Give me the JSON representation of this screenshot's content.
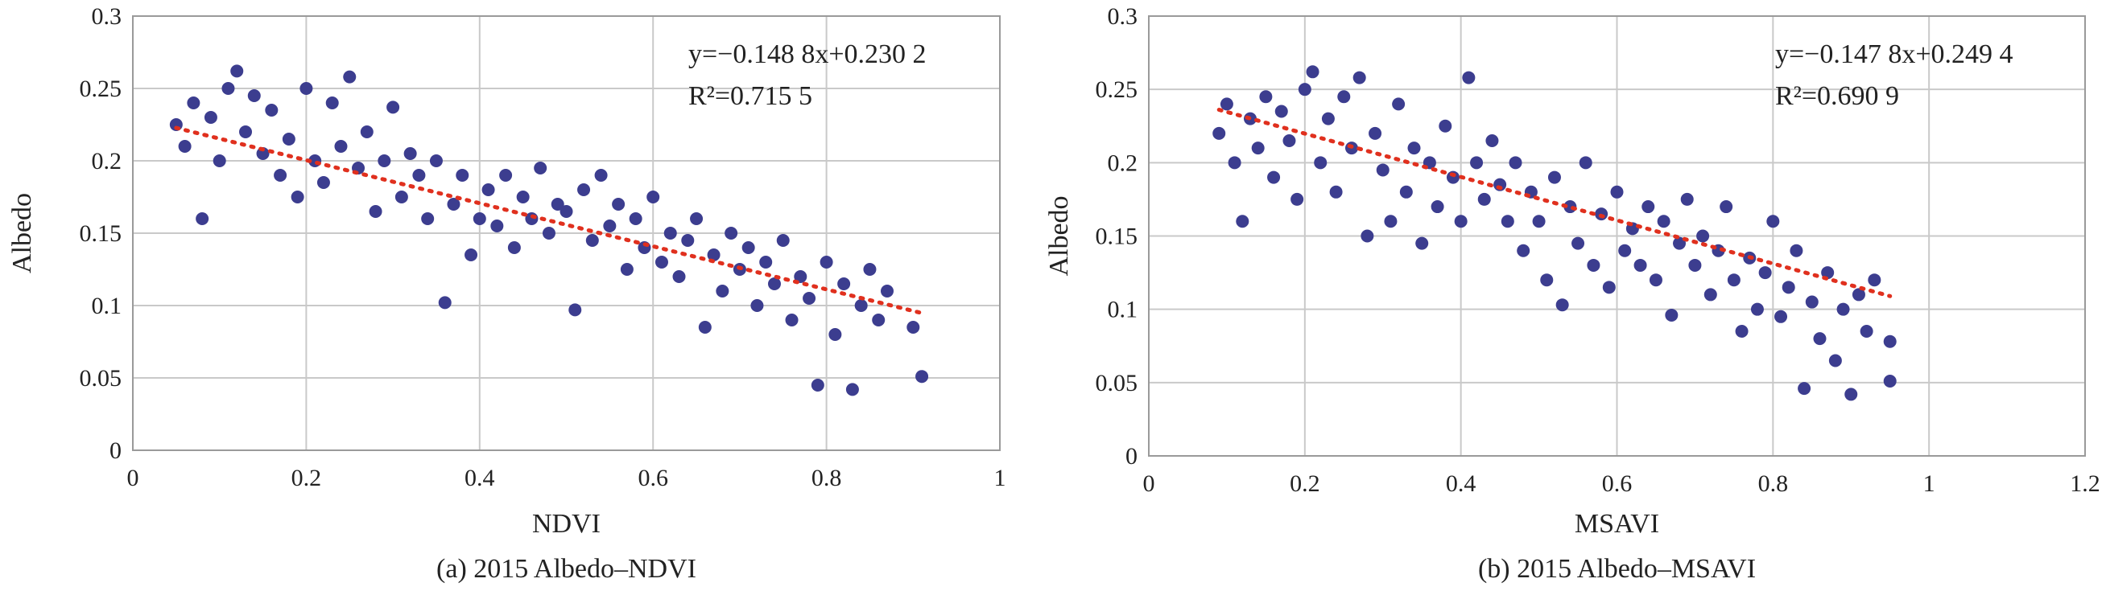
{
  "chart_data": [
    {
      "type": "scatter",
      "caption": "(a) 2015 Albedo–NDVI",
      "xlabel": "NDVI",
      "ylabel": "Albedo",
      "xlim": [
        0,
        1
      ],
      "ylim": [
        0,
        0.3
      ],
      "xticks": [
        0,
        0.2,
        0.4,
        0.6,
        0.8,
        1
      ],
      "xtick_labels": [
        "0",
        "0.2",
        "0.4",
        "0.6",
        "0.8",
        "1"
      ],
      "yticks": [
        0,
        0.05,
        0.1,
        0.15,
        0.2,
        0.25,
        0.3
      ],
      "ytick_labels": [
        "0",
        "0.05",
        "0.1",
        "0.15",
        "0.2",
        "0.25",
        "0.3"
      ],
      "grid": true,
      "point_color": "#3c3d8f",
      "trendline": {
        "slope": -0.1488,
        "intercept": 0.2302,
        "x_range": [
          0.05,
          0.91
        ],
        "color": "#e0301e",
        "style": "dotted"
      },
      "equation_line1": "y=−0.148 8x+0.230 2",
      "equation_line2": "R²=0.715 5",
      "points": [
        [
          0.05,
          0.225
        ],
        [
          0.06,
          0.21
        ],
        [
          0.07,
          0.24
        ],
        [
          0.08,
          0.16
        ],
        [
          0.09,
          0.23
        ],
        [
          0.1,
          0.2
        ],
        [
          0.11,
          0.25
        ],
        [
          0.12,
          0.262
        ],
        [
          0.13,
          0.22
        ],
        [
          0.14,
          0.245
        ],
        [
          0.15,
          0.205
        ],
        [
          0.16,
          0.235
        ],
        [
          0.17,
          0.19
        ],
        [
          0.18,
          0.215
        ],
        [
          0.19,
          0.175
        ],
        [
          0.2,
          0.25
        ],
        [
          0.21,
          0.2
        ],
        [
          0.22,
          0.185
        ],
        [
          0.23,
          0.24
        ],
        [
          0.24,
          0.21
        ],
        [
          0.25,
          0.258
        ],
        [
          0.26,
          0.195
        ],
        [
          0.27,
          0.22
        ],
        [
          0.28,
          0.165
        ],
        [
          0.29,
          0.2
        ],
        [
          0.3,
          0.237
        ],
        [
          0.31,
          0.175
        ],
        [
          0.32,
          0.205
        ],
        [
          0.33,
          0.19
        ],
        [
          0.34,
          0.16
        ],
        [
          0.35,
          0.2
        ],
        [
          0.36,
          0.102
        ],
        [
          0.37,
          0.17
        ],
        [
          0.38,
          0.19
        ],
        [
          0.39,
          0.135
        ],
        [
          0.4,
          0.16
        ],
        [
          0.41,
          0.18
        ],
        [
          0.42,
          0.155
        ],
        [
          0.43,
          0.19
        ],
        [
          0.44,
          0.14
        ],
        [
          0.45,
          0.175
        ],
        [
          0.46,
          0.16
        ],
        [
          0.47,
          0.195
        ],
        [
          0.48,
          0.15
        ],
        [
          0.49,
          0.17
        ],
        [
          0.5,
          0.165
        ],
        [
          0.51,
          0.097
        ],
        [
          0.52,
          0.18
        ],
        [
          0.53,
          0.145
        ],
        [
          0.54,
          0.19
        ],
        [
          0.55,
          0.155
        ],
        [
          0.56,
          0.17
        ],
        [
          0.57,
          0.125
        ],
        [
          0.58,
          0.16
        ],
        [
          0.59,
          0.14
        ],
        [
          0.6,
          0.175
        ],
        [
          0.61,
          0.13
        ],
        [
          0.62,
          0.15
        ],
        [
          0.63,
          0.12
        ],
        [
          0.64,
          0.145
        ],
        [
          0.65,
          0.16
        ],
        [
          0.66,
          0.085
        ],
        [
          0.67,
          0.135
        ],
        [
          0.68,
          0.11
        ],
        [
          0.69,
          0.15
        ],
        [
          0.7,
          0.125
        ],
        [
          0.71,
          0.14
        ],
        [
          0.72,
          0.1
        ],
        [
          0.73,
          0.13
        ],
        [
          0.74,
          0.115
        ],
        [
          0.75,
          0.145
        ],
        [
          0.76,
          0.09
        ],
        [
          0.77,
          0.12
        ],
        [
          0.78,
          0.105
        ],
        [
          0.79,
          0.045
        ],
        [
          0.8,
          0.13
        ],
        [
          0.81,
          0.08
        ],
        [
          0.82,
          0.115
        ],
        [
          0.83,
          0.042
        ],
        [
          0.84,
          0.1
        ],
        [
          0.85,
          0.125
        ],
        [
          0.86,
          0.09
        ],
        [
          0.87,
          0.11
        ],
        [
          0.9,
          0.085
        ],
        [
          0.91,
          0.051
        ]
      ]
    },
    {
      "type": "scatter",
      "caption": "(b) 2015 Albedo–MSAVI",
      "xlabel": "MSAVI",
      "ylabel": "Albedo",
      "xlim": [
        0,
        1.2
      ],
      "ylim": [
        0,
        0.3
      ],
      "xticks": [
        0,
        0.2,
        0.4,
        0.6,
        0.8,
        1,
        1.2
      ],
      "xtick_labels": [
        "0",
        "0.2",
        "0.4",
        "0.6",
        "0.8",
        "1",
        "1.2"
      ],
      "yticks": [
        0,
        0.05,
        0.1,
        0.15,
        0.2,
        0.25,
        0.3
      ],
      "ytick_labels": [
        "0",
        "0.05",
        "0.1",
        "0.15",
        "0.2",
        "0.25",
        "0.3"
      ],
      "grid": true,
      "point_color": "#3c3d8f",
      "trendline": {
        "slope": -0.1478,
        "intercept": 0.2494,
        "x_range": [
          0.09,
          0.95
        ],
        "color": "#e0301e",
        "style": "dotted"
      },
      "equation_line1": "y=−0.147 8x+0.249 4",
      "equation_line2": "R²=0.690 9",
      "points": [
        [
          0.09,
          0.22
        ],
        [
          0.1,
          0.24
        ],
        [
          0.11,
          0.2
        ],
        [
          0.12,
          0.16
        ],
        [
          0.13,
          0.23
        ],
        [
          0.14,
          0.21
        ],
        [
          0.15,
          0.245
        ],
        [
          0.16,
          0.19
        ],
        [
          0.17,
          0.235
        ],
        [
          0.18,
          0.215
        ],
        [
          0.19,
          0.175
        ],
        [
          0.2,
          0.25
        ],
        [
          0.21,
          0.262
        ],
        [
          0.22,
          0.2
        ],
        [
          0.23,
          0.23
        ],
        [
          0.24,
          0.18
        ],
        [
          0.25,
          0.245
        ],
        [
          0.26,
          0.21
        ],
        [
          0.27,
          0.258
        ],
        [
          0.28,
          0.15
        ],
        [
          0.29,
          0.22
        ],
        [
          0.3,
          0.195
        ],
        [
          0.31,
          0.16
        ],
        [
          0.32,
          0.24
        ],
        [
          0.33,
          0.18
        ],
        [
          0.34,
          0.21
        ],
        [
          0.35,
          0.145
        ],
        [
          0.36,
          0.2
        ],
        [
          0.37,
          0.17
        ],
        [
          0.38,
          0.225
        ],
        [
          0.39,
          0.19
        ],
        [
          0.4,
          0.16
        ],
        [
          0.41,
          0.258
        ],
        [
          0.42,
          0.2
        ],
        [
          0.43,
          0.175
        ],
        [
          0.44,
          0.215
        ],
        [
          0.45,
          0.185
        ],
        [
          0.46,
          0.16
        ],
        [
          0.47,
          0.2
        ],
        [
          0.48,
          0.14
        ],
        [
          0.49,
          0.18
        ],
        [
          0.5,
          0.16
        ],
        [
          0.51,
          0.12
        ],
        [
          0.52,
          0.19
        ],
        [
          0.53,
          0.103
        ],
        [
          0.54,
          0.17
        ],
        [
          0.55,
          0.145
        ],
        [
          0.56,
          0.2
        ],
        [
          0.57,
          0.13
        ],
        [
          0.58,
          0.165
        ],
        [
          0.59,
          0.115
        ],
        [
          0.6,
          0.18
        ],
        [
          0.61,
          0.14
        ],
        [
          0.62,
          0.155
        ],
        [
          0.63,
          0.13
        ],
        [
          0.64,
          0.17
        ],
        [
          0.65,
          0.12
        ],
        [
          0.66,
          0.16
        ],
        [
          0.67,
          0.096
        ],
        [
          0.68,
          0.145
        ],
        [
          0.69,
          0.175
        ],
        [
          0.7,
          0.13
        ],
        [
          0.71,
          0.15
        ],
        [
          0.72,
          0.11
        ],
        [
          0.73,
          0.14
        ],
        [
          0.74,
          0.17
        ],
        [
          0.75,
          0.12
        ],
        [
          0.76,
          0.085
        ],
        [
          0.77,
          0.135
        ],
        [
          0.78,
          0.1
        ],
        [
          0.79,
          0.125
        ],
        [
          0.8,
          0.16
        ],
        [
          0.81,
          0.095
        ],
        [
          0.82,
          0.115
        ],
        [
          0.83,
          0.14
        ],
        [
          0.84,
          0.046
        ],
        [
          0.85,
          0.105
        ],
        [
          0.86,
          0.08
        ],
        [
          0.87,
          0.125
        ],
        [
          0.88,
          0.065
        ],
        [
          0.89,
          0.1
        ],
        [
          0.9,
          0.042
        ],
        [
          0.91,
          0.11
        ],
        [
          0.92,
          0.085
        ],
        [
          0.93,
          0.12
        ],
        [
          0.95,
          0.078
        ],
        [
          0.95,
          0.051
        ]
      ]
    }
  ]
}
